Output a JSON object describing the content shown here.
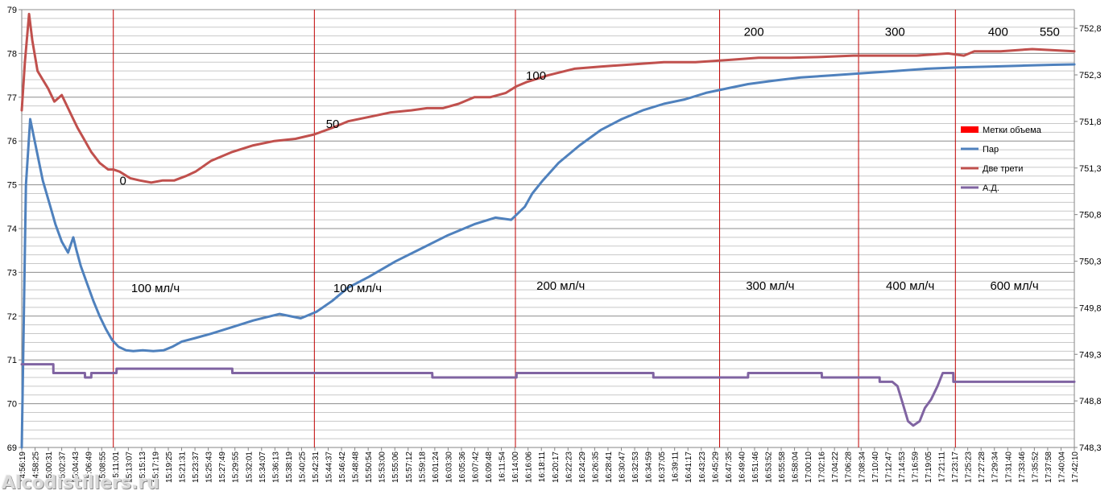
{
  "chart_data": {
    "type": "line",
    "title": "",
    "xlabel": "",
    "ylabel": "",
    "y_left": {
      "min": 69,
      "max": 79,
      "ticks": [
        "69",
        "70",
        "71",
        "72",
        "73",
        "74",
        "75",
        "76",
        "77",
        "78",
        "79"
      ]
    },
    "y_right": {
      "min": 748.3,
      "max": 753.0,
      "ticks": [
        "748,3",
        "748,8",
        "749,3",
        "749,8",
        "750,3",
        "750,8",
        "751,3",
        "751,8",
        "752,3",
        "752,8"
      ]
    },
    "grid": true,
    "legend_position": "right",
    "x_ticks": [
      "14:56:19",
      "14:58:25",
      "15:00:31",
      "15:02:37",
      "15:04:43",
      "15:06:49",
      "15:08:55",
      "15:11:01",
      "15:13:07",
      "15:15:13",
      "15:17:19",
      "15:19:25",
      "15:21:31",
      "15:23:37",
      "15:25:43",
      "15:27:49",
      "15:29:55",
      "15:32:01",
      "15:34:07",
      "15:36:13",
      "15:38:19",
      "15:40:25",
      "15:42:31",
      "15:44:37",
      "15:46:42",
      "15:48:48",
      "15:50:54",
      "15:53:00",
      "15:55:06",
      "15:57:12",
      "15:59:18",
      "16:01:24",
      "16:03:30",
      "16:05:36",
      "16:07:42",
      "16:09:48",
      "16:11:54",
      "16:14:00",
      "16:16:06",
      "16:18:11",
      "16:20:17",
      "16:22:23",
      "16:24:29",
      "16:26:35",
      "16:28:41",
      "16:30:47",
      "16:32:53",
      "16:34:59",
      "16:37:05",
      "16:39:11",
      "16:41:17",
      "16:43:23",
      "16:45:29",
      "16:47:35",
      "16:49:40",
      "16:51:46",
      "16:53:52",
      "16:55:58",
      "16:58:04",
      "17:00:10",
      "17:02:16",
      "17:04:22",
      "17:06:28",
      "17:08:34",
      "17:10:40",
      "17:12:47",
      "17:14:53",
      "17:16:59",
      "17:19:05",
      "17:21:11",
      "17:23:17",
      "17:25:23",
      "17:27:28",
      "17:29:34",
      "17:31:40",
      "17:33:46",
      "17:35:52",
      "17:37:58",
      "17:40:04",
      "17:42:10"
    ],
    "markers": {
      "name": "Метки объема",
      "color": "#ff0000",
      "positions": [
        8.7,
        27.8,
        46.9,
        66.3,
        79.5,
        88.7
      ]
    },
    "volume_labels": [
      {
        "text": "0",
        "x": 9.3,
        "y": 75.0
      },
      {
        "text": "50",
        "x": 28.9,
        "y": 76.3
      },
      {
        "text": "100",
        "x": 47.9,
        "y": 77.4
      },
      {
        "text": "200",
        "x": 68.6,
        "y": 78.4
      },
      {
        "text": "300",
        "x": 82.0,
        "y": 78.4
      },
      {
        "text": "400",
        "x": 91.8,
        "y": 78.4
      },
      {
        "text": "550",
        "x": 96.7,
        "y": 78.4
      }
    ],
    "rate_labels": [
      {
        "text": "100 мл/ч",
        "x": 10.4,
        "y": 72.55
      },
      {
        "text": "100 мл/ч",
        "x": 29.6,
        "y": 72.55
      },
      {
        "text": "200 мл/ч",
        "x": 48.9,
        "y": 72.6
      },
      {
        "text": "300 мл/ч",
        "x": 68.8,
        "y": 72.6
      },
      {
        "text": "400 мл/ч",
        "x": 82.1,
        "y": 72.6
      },
      {
        "text": "600 мл/ч",
        "x": 92.0,
        "y": 72.6
      }
    ],
    "series": [
      {
        "name": "Пар",
        "color": "#4f81bd",
        "axis": "left",
        "x": [
          0,
          0.4,
          0.8,
          1.4,
          2.0,
          2.6,
          3.2,
          3.8,
          4.4,
          4.9,
          5.2,
          5.6,
          6.2,
          6.8,
          7.4,
          8.0,
          8.6,
          9.2,
          9.9,
          10.6,
          11.5,
          12.5,
          13.5,
          14.3,
          15.2,
          16.5,
          18.0,
          20.0,
          22.0,
          24.5,
          26.5,
          28.0,
          29.5,
          31.0,
          33.0,
          35.5,
          38.0,
          40.5,
          43.0,
          45.0,
          46.5,
          47.8,
          48.5,
          49.5,
          51.0,
          53.0,
          55.0,
          57.0,
          59.0,
          61.0,
          63.0,
          65.0,
          67.0,
          69.0,
          71.5,
          74.0,
          77.0,
          80.0,
          83.0,
          86.0,
          89.0,
          92.0,
          95.0,
          98.0,
          100
        ],
        "y": [
          69.0,
          75.0,
          76.5,
          75.8,
          75.1,
          74.6,
          74.1,
          73.7,
          73.45,
          73.8,
          73.5,
          73.15,
          72.75,
          72.35,
          72.0,
          71.7,
          71.45,
          71.3,
          71.22,
          71.2,
          71.22,
          71.2,
          71.22,
          71.3,
          71.42,
          71.5,
          71.6,
          71.75,
          71.9,
          72.05,
          71.95,
          72.1,
          72.35,
          72.65,
          72.9,
          73.25,
          73.55,
          73.85,
          74.1,
          74.25,
          74.2,
          74.5,
          74.8,
          75.1,
          75.5,
          75.9,
          76.25,
          76.5,
          76.7,
          76.85,
          76.95,
          77.1,
          77.2,
          77.3,
          77.38,
          77.45,
          77.5,
          77.55,
          77.6,
          77.65,
          77.68,
          77.7,
          77.72,
          77.74,
          77.75
        ]
      },
      {
        "name": "Две трети",
        "color": "#c0504d",
        "axis": "left",
        "x": [
          0,
          0.3,
          0.7,
          1.0,
          1.5,
          2.0,
          2.5,
          3.1,
          3.8,
          4.4,
          4.9,
          5.3,
          5.9,
          6.6,
          7.4,
          8.2,
          8.7,
          9.3,
          10.3,
          11.2,
          12.3,
          13.4,
          14.5,
          15.6,
          16.5,
          18.0,
          20.0,
          22.0,
          24.0,
          26.0,
          27.8,
          29.5,
          31.0,
          33.0,
          35.0,
          37.0,
          38.5,
          40.0,
          41.5,
          43.0,
          44.5,
          46.0,
          47.0,
          48.0,
          50.0,
          52.5,
          55.0,
          58.0,
          61.0,
          64.0,
          67.0,
          70.0,
          73.0,
          76.0,
          79.0,
          82.0,
          85.0,
          88.0,
          89.5,
          90.5,
          93.0,
          96.0,
          100
        ],
        "y": [
          76.7,
          77.8,
          78.9,
          78.3,
          77.6,
          77.4,
          77.2,
          76.9,
          77.05,
          76.75,
          76.5,
          76.3,
          76.05,
          75.75,
          75.5,
          75.35,
          75.35,
          75.3,
          75.15,
          75.1,
          75.05,
          75.1,
          75.1,
          75.2,
          75.3,
          75.55,
          75.75,
          75.9,
          76.0,
          76.05,
          76.15,
          76.3,
          76.45,
          76.55,
          76.65,
          76.7,
          76.75,
          76.75,
          76.85,
          77.0,
          77.0,
          77.1,
          77.25,
          77.35,
          77.5,
          77.65,
          77.7,
          77.75,
          77.8,
          77.8,
          77.85,
          77.9,
          77.9,
          77.92,
          77.95,
          77.95,
          77.95,
          78.0,
          77.95,
          78.05,
          78.05,
          78.1,
          78.05
        ]
      },
      {
        "name": "А.Д.",
        "color": "#8064a2",
        "axis": "left",
        "x": [
          0,
          3.0,
          3.01,
          6.0,
          6.01,
          6.6,
          6.61,
          9.0,
          9.01,
          20.0,
          20.01,
          27.5,
          27.51,
          39.0,
          39.01,
          47.0,
          47.01,
          60.0,
          60.01,
          69.0,
          69.01,
          76.0,
          76.01,
          81.5,
          81.51,
          82.7,
          83.2,
          83.7,
          84.2,
          84.7,
          85.3,
          85.8,
          86.4,
          87.0,
          87.5,
          88.0,
          88.5,
          88.51,
          92.0,
          92.01,
          97.0,
          97.01,
          100
        ],
        "y": [
          70.9,
          70.9,
          70.7,
          70.7,
          70.6,
          70.6,
          70.7,
          70.7,
          70.8,
          70.8,
          70.7,
          70.7,
          70.7,
          70.7,
          70.6,
          70.6,
          70.7,
          70.7,
          70.6,
          70.6,
          70.7,
          70.7,
          70.6,
          70.6,
          70.5,
          70.5,
          70.4,
          70.0,
          69.6,
          69.5,
          69.6,
          69.9,
          70.1,
          70.4,
          70.7,
          70.7,
          70.7,
          70.5,
          70.5,
          70.5,
          70.5,
          70.5,
          70.5
        ]
      }
    ]
  },
  "watermark": "Alcodistillers.ru"
}
